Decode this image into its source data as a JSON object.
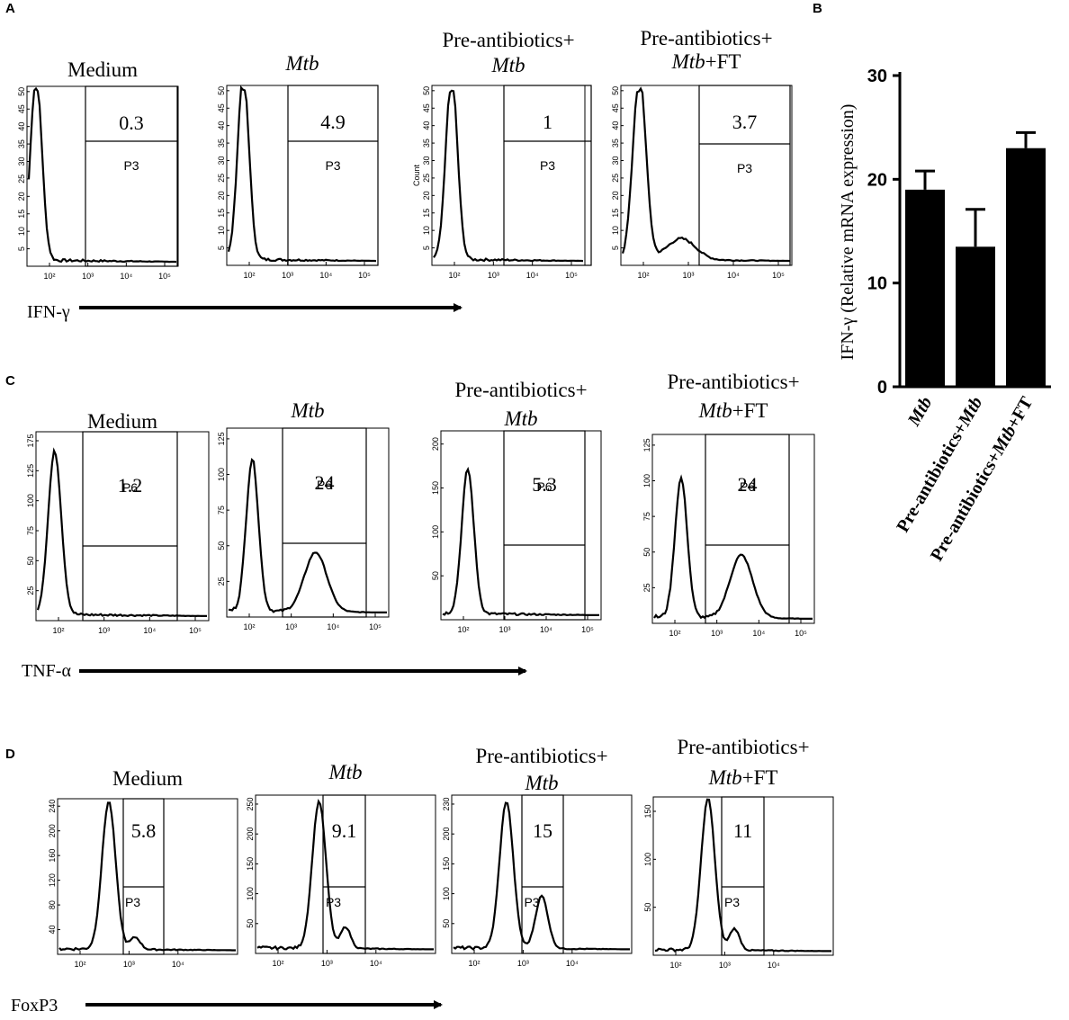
{
  "figure": {
    "panels": [
      {
        "letter": "A",
        "marker": "IFN-γ",
        "gate_label": "P3",
        "y_ticks": [
          "5",
          "10",
          "15",
          "20",
          "25",
          "30",
          "35",
          "40",
          "45",
          "50"
        ],
        "x_ticks": [
          "10²",
          "10³",
          "10⁴",
          "10⁵"
        ],
        "plots": [
          {
            "title": "Medium",
            "title_italic": false,
            "pct": "0.3",
            "y_label": ""
          },
          {
            "title": "Mtb",
            "title_italic": true,
            "pct": "4.9",
            "y_label": ""
          },
          {
            "title": "Pre-antibiotics+",
            "title2": "Mtb",
            "title2_suffix": "",
            "pct": "1",
            "y_label": "Count"
          },
          {
            "title": "Pre-antibiotics+",
            "title2": "Mtb",
            "title2_suffix": "+FT",
            "pct": "3.7",
            "y_label": ""
          }
        ]
      },
      {
        "letter": "C",
        "marker": "TNF-α",
        "gate_label": "P6",
        "y_ticks": [
          "25",
          "50",
          "75",
          "100",
          "125"
        ],
        "x_ticks": [
          "10²",
          "10³",
          "10⁴",
          "10⁵"
        ],
        "plots": [
          {
            "title": "Medium",
            "title_italic": false,
            "pct": "1.2",
            "y_ticks": [
              "25",
              "50",
              "75",
              "100",
              "125",
              "175"
            ]
          },
          {
            "title": "Mtb",
            "title_italic": true,
            "pct": "24",
            "y_ticks": [
              "25",
              "50",
              "75",
              "100",
              "125"
            ]
          },
          {
            "title": "Pre-antibiotics+",
            "title2": "Mtb",
            "title2_suffix": "",
            "pct": "5.3",
            "y_ticks": [
              "50",
              "100",
              "150",
              "200"
            ]
          },
          {
            "title": "Pre-antibiotics+",
            "title2": "Mtb",
            "title2_suffix": "+FT",
            "pct": "24",
            "y_ticks": [
              "25",
              "50",
              "75",
              "100",
              "125"
            ]
          }
        ]
      },
      {
        "letter": "D",
        "marker": "FoxP3",
        "gate_label": "P3",
        "x_ticks": [
          "10²",
          "10³",
          "10⁴"
        ],
        "plots": [
          {
            "title": "Medium",
            "title_italic": false,
            "pct": "5.8",
            "y_ticks": [
              "40",
              "80",
              "120",
              "160",
              "200",
              "240"
            ]
          },
          {
            "title": "Mtb",
            "title_italic": true,
            "pct": "9.1",
            "y_ticks": [
              "50",
              "100",
              "150",
              "200",
              "250"
            ]
          },
          {
            "title": "Pre-antibiotics+",
            "title2": "Mtb",
            "title2_suffix": "",
            "pct": "15",
            "y_ticks": [
              "50",
              "100",
              "150",
              "200",
              "230"
            ]
          },
          {
            "title": "Pre-antibiotics+",
            "title2": "Mtb",
            "title2_suffix": "+FT",
            "pct": "11",
            "y_ticks": [
              "50",
              "100",
              "150"
            ]
          }
        ]
      }
    ]
  },
  "chart_data": {
    "letter": "B",
    "type": "bar",
    "title": "",
    "ylabel": "IFN-γ (Relative mRNA expression)",
    "xlabel": "",
    "ylim": [
      0,
      30
    ],
    "y_ticks": [
      "0",
      "10",
      "20",
      "30"
    ],
    "categories": [
      {
        "prefix": "",
        "italic": "Mtb",
        "suffix": ""
      },
      {
        "prefix": "Pre-antibiotics+",
        "italic": "Mtb",
        "suffix": ""
      },
      {
        "prefix": "Pre-antibiotics+",
        "italic": "Mtb",
        "suffix": "+FT"
      }
    ],
    "values": [
      19,
      13.5,
      23
    ],
    "errors": [
      1.8,
      3.6,
      1.5
    ],
    "bar_color": "#000000"
  }
}
